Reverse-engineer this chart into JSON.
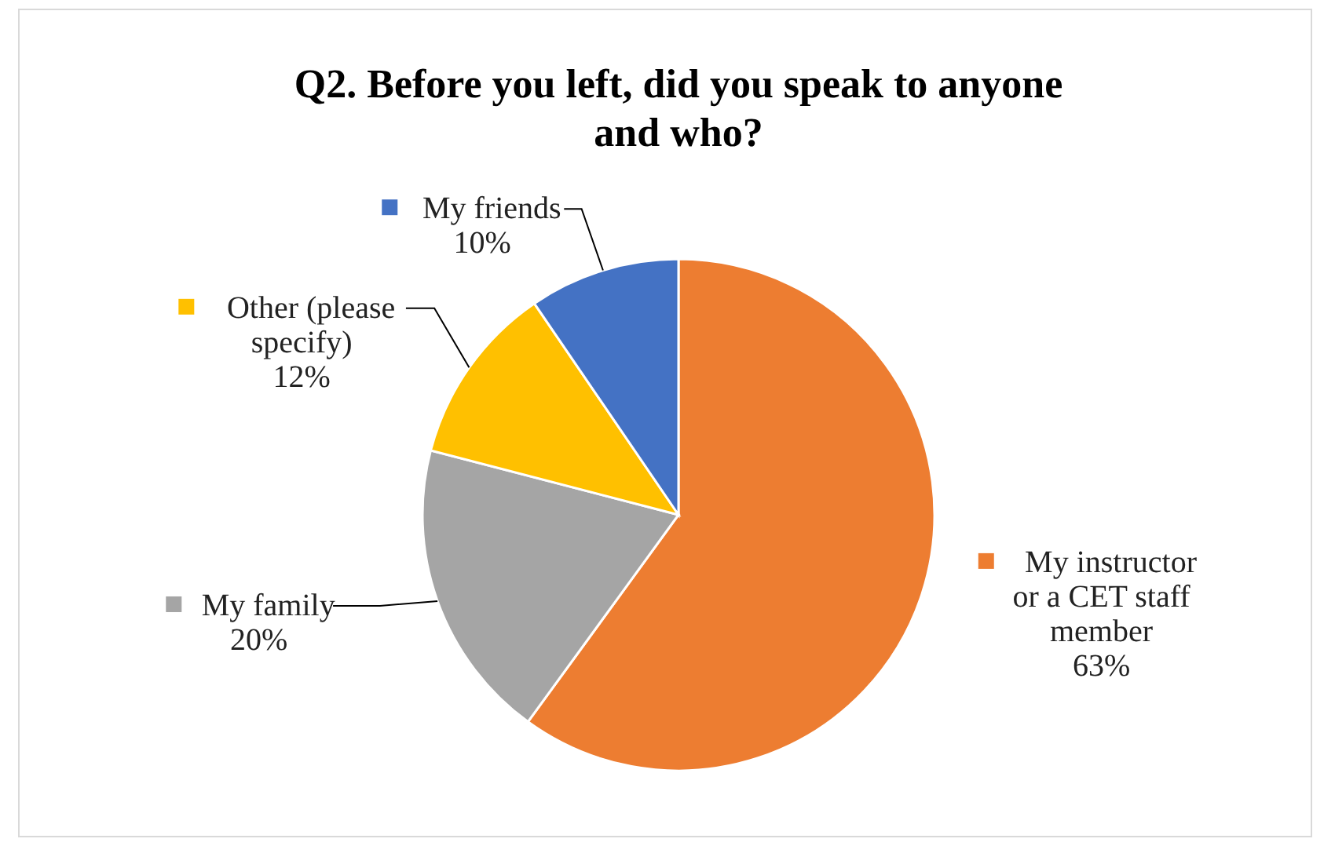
{
  "chart_data": {
    "type": "pie",
    "title": "Q2. Before you left, did you speak to anyone and who?",
    "categories": [
      "My instructor or a CET staff member",
      "My family",
      "Other (please specify)",
      "My friends"
    ],
    "values": [
      63,
      20,
      12,
      10
    ],
    "value_labels": [
      "63%",
      "20%",
      "12%",
      "10%"
    ],
    "colors": [
      "#ed7d31",
      "#a5a5a5",
      "#ffc000",
      "#4472c4"
    ],
    "legend": true
  }
}
